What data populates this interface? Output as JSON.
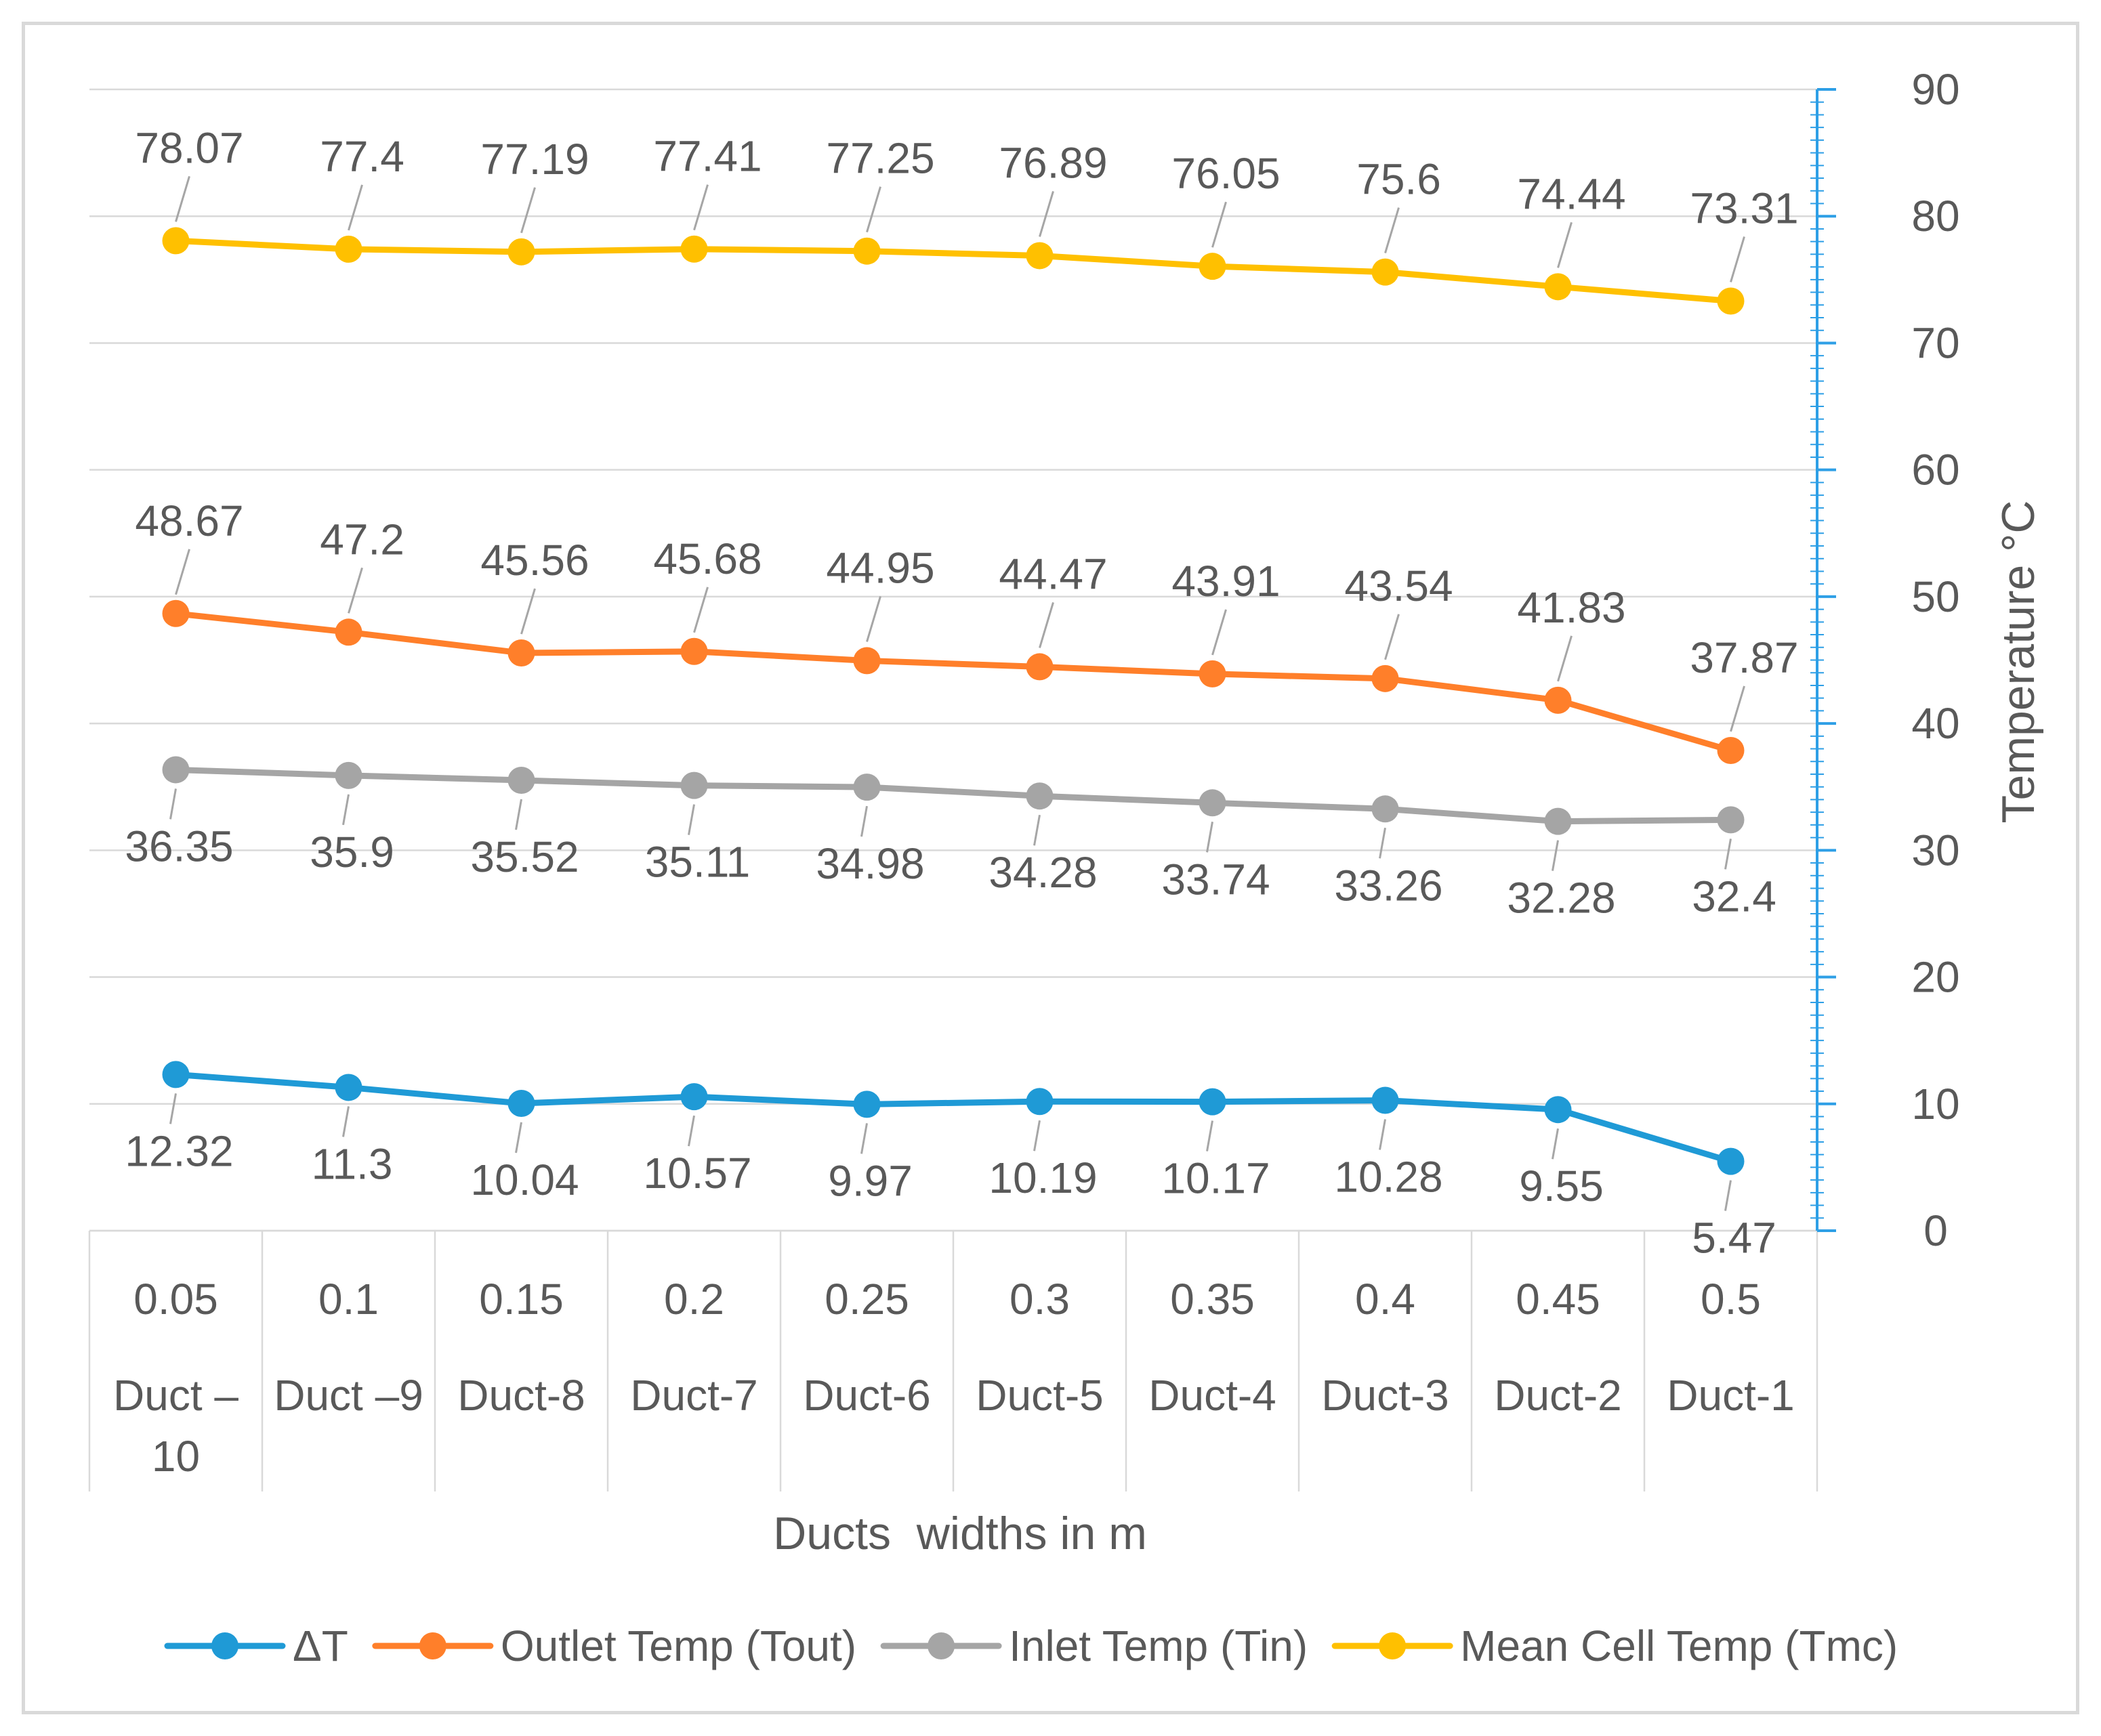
{
  "chart_data": {
    "type": "line",
    "title": "",
    "xlabel": "Ducts  widths in m",
    "ylabel": "Temperature °C",
    "ylim": [
      0,
      90
    ],
    "yticks": [
      "0",
      "10",
      "20",
      "30",
      "40",
      "50",
      "60",
      "70",
      "80",
      "90"
    ],
    "categories": [
      {
        "width": "0.05",
        "duct": [
          "Duct –",
          "10"
        ]
      },
      {
        "width": "0.1",
        "duct": [
          "Duct –9"
        ]
      },
      {
        "width": "0.15",
        "duct": [
          "Duct-8"
        ]
      },
      {
        "width": "0.2",
        "duct": [
          "Duct-7"
        ]
      },
      {
        "width": "0.25",
        "duct": [
          "Duct-6"
        ]
      },
      {
        "width": "0.3",
        "duct": [
          "Duct-5"
        ]
      },
      {
        "width": "0.35",
        "duct": [
          "Duct-4"
        ]
      },
      {
        "width": "0.4",
        "duct": [
          "Duct-3"
        ]
      },
      {
        "width": "0.45",
        "duct": [
          "Duct-2"
        ]
      },
      {
        "width": "0.5",
        "duct": [
          "Duct-1"
        ]
      }
    ],
    "series": [
      {
        "name": "ΔT",
        "color": "#1f9ad6",
        "label_position": "below",
        "values": [
          12.32,
          11.3,
          10.04,
          10.57,
          9.97,
          10.19,
          10.17,
          10.28,
          9.55,
          5.47
        ],
        "labels": [
          "12.32",
          "11.3",
          "10.04",
          "10.57",
          "9.97",
          "10.19",
          "10.17",
          "10.28",
          "9.55",
          "5.47"
        ]
      },
      {
        "name": "Outlet Temp (Tout)",
        "color": "#ff7f2a",
        "label_position": "above",
        "values": [
          48.67,
          47.2,
          45.56,
          45.68,
          44.95,
          44.47,
          43.91,
          43.54,
          41.83,
          37.87
        ],
        "labels": [
          "48.67",
          "47.2",
          "45.56",
          "45.68",
          "44.95",
          "44.47",
          "43.91",
          "43.54",
          "41.83",
          "37.87"
        ]
      },
      {
        "name": "Inlet Temp (Tin)",
        "color": "#a5a5a5",
        "label_position": "below",
        "values": [
          36.35,
          35.9,
          35.52,
          35.11,
          34.98,
          34.28,
          33.74,
          33.26,
          32.28,
          32.4
        ],
        "labels": [
          "36.35",
          "35.9",
          "35.52",
          "35.11",
          "34.98",
          "34.28",
          "33.74",
          "33.26",
          "32.28",
          "32.4"
        ]
      },
      {
        "name": "Mean Cell Temp (Tmc)",
        "color": "#ffc000",
        "label_position": "above",
        "values": [
          78.07,
          77.4,
          77.19,
          77.41,
          77.25,
          76.89,
          76.05,
          75.6,
          74.44,
          73.31
        ],
        "labels": [
          "78.07",
          "77.4",
          "77.19",
          "77.41",
          "77.25",
          "76.89",
          "76.05",
          "75.6",
          "74.44",
          "73.31"
        ]
      }
    ],
    "grid": true,
    "legend_position": "bottom"
  }
}
